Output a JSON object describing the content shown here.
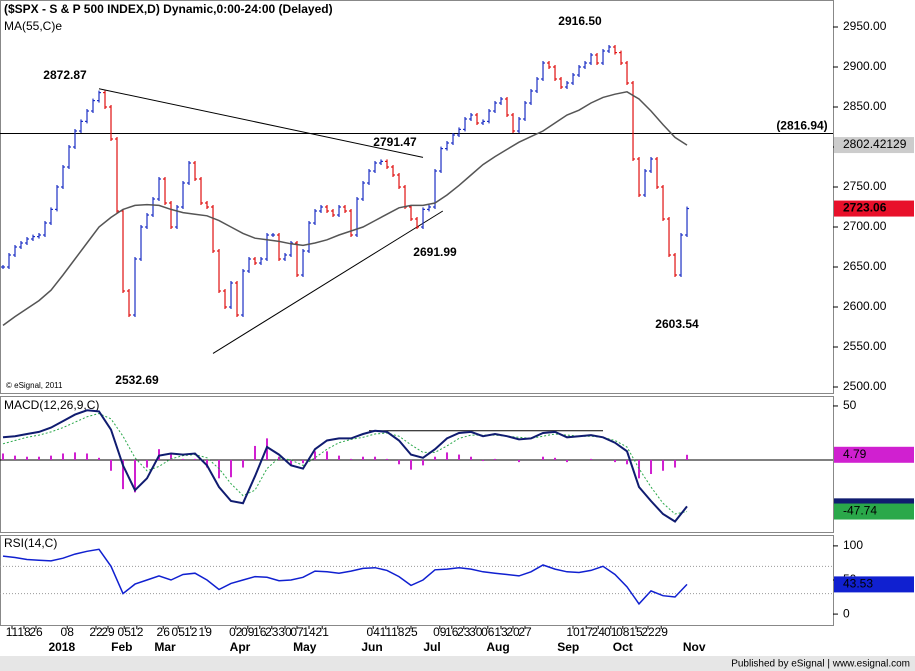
{
  "chart_data": {
    "type": "ohlc",
    "title": "($SPX - S & P 500 INDEX,D) Dynamic,0:00-24:00 (Delayed)",
    "copyright": "© eSignal, 2011",
    "publisher": "Published by eSignal | www.esignal.com",
    "xlim": [
      -0.5,
      138.33
    ],
    "xticks": [
      {
        "value": 1.5,
        "label": "11"
      },
      {
        "value": 3.5,
        "label": "18"
      },
      {
        "value": 5.5,
        "label": "26"
      },
      {
        "value": 10.7,
        "label": "08"
      },
      {
        "value": 15.5,
        "label": "22"
      },
      {
        "value": 17.5,
        "label": "29"
      },
      {
        "value": 20.2,
        "label": "05"
      },
      {
        "value": 22.3,
        "label": "12"
      },
      {
        "value": 26.7,
        "label": "26"
      },
      {
        "value": 29.2,
        "label": "05"
      },
      {
        "value": 31.3,
        "label": "12"
      },
      {
        "value": 33.7,
        "label": "19"
      },
      {
        "value": 38.8,
        "label": "02"
      },
      {
        "value": 40.8,
        "label": "09"
      },
      {
        "value": 42.8,
        "label": "16"
      },
      {
        "value": 44.8,
        "label": "23"
      },
      {
        "value": 47,
        "label": "30"
      },
      {
        "value": 49,
        "label": "07"
      },
      {
        "value": 51,
        "label": "14"
      },
      {
        "value": 53.2,
        "label": "21"
      },
      {
        "value": 61.7,
        "label": "04"
      },
      {
        "value": 63.8,
        "label": "11"
      },
      {
        "value": 65.8,
        "label": "18"
      },
      {
        "value": 68,
        "label": "25"
      },
      {
        "value": 72.8,
        "label": "09"
      },
      {
        "value": 74.8,
        "label": "16"
      },
      {
        "value": 76.8,
        "label": "23"
      },
      {
        "value": 78.8,
        "label": "30"
      },
      {
        "value": 80.8,
        "label": "06"
      },
      {
        "value": 83,
        "label": "13"
      },
      {
        "value": 85,
        "label": "20"
      },
      {
        "value": 87,
        "label": "27"
      },
      {
        "value": 95,
        "label": "10"
      },
      {
        "value": 97.2,
        "label": "17"
      },
      {
        "value": 99.2,
        "label": "24"
      },
      {
        "value": 101.3,
        "label": "01"
      },
      {
        "value": 103.3,
        "label": "08"
      },
      {
        "value": 105.5,
        "label": "15"
      },
      {
        "value": 107.5,
        "label": "22"
      },
      {
        "value": 109.7,
        "label": "29"
      }
    ],
    "months": [
      {
        "value": 9.8,
        "label": "2018"
      },
      {
        "value": 19.8,
        "label": "Feb"
      },
      {
        "value": 27,
        "label": "Mar"
      },
      {
        "value": 39.5,
        "label": "Apr"
      },
      {
        "value": 50.3,
        "label": "May"
      },
      {
        "value": 61.5,
        "label": "Jun"
      },
      {
        "value": 71.5,
        "label": "Jul"
      },
      {
        "value": 82.5,
        "label": "Aug"
      },
      {
        "value": 94.2,
        "label": "Sep"
      },
      {
        "value": 103.3,
        "label": "Oct"
      },
      {
        "value": 115.2,
        "label": "Nov"
      }
    ],
    "ylim": [
      2492.5,
      2983.75
    ],
    "yticks": [
      {
        "value": 2500,
        "label": "2500.00"
      },
      {
        "value": 2550,
        "label": "2550.00"
      },
      {
        "value": 2600,
        "label": "2600.00"
      },
      {
        "value": 2650,
        "label": "2650.00"
      },
      {
        "value": 2700,
        "label": "2700.00"
      },
      {
        "value": 2750,
        "label": "2750.00"
      },
      {
        "value": 2800,
        "label": "2800.00"
      },
      {
        "value": 2850,
        "label": "2850.00"
      },
      {
        "value": 2900,
        "label": "2900.00"
      },
      {
        "value": 2950,
        "label": "2950.00"
      }
    ],
    "price": {
      "up_color": "#1c2fc4",
      "down_color": "#e01010",
      "last_color": "#e8102a",
      "closes": [
        2650,
        2665,
        2675,
        2680,
        2685,
        2688,
        2690,
        2705,
        2722,
        2750,
        2775,
        2800,
        2820,
        2832,
        2845,
        2858,
        2868,
        2850,
        2810,
        2720,
        2620,
        2590,
        2660,
        2700,
        2715,
        2735,
        2760,
        2730,
        2700,
        2725,
        2755,
        2780,
        2760,
        2730,
        2725,
        2670,
        2620,
        2600,
        2630,
        2590,
        2645,
        2660,
        2655,
        2660,
        2690,
        2690,
        2660,
        2665,
        2680,
        2640,
        2670,
        2705,
        2720,
        2725,
        2720,
        2715,
        2725,
        2720,
        2690,
        2735,
        2755,
        2770,
        2780,
        2782,
        2775,
        2765,
        2750,
        2725,
        2710,
        2700,
        2722,
        2725,
        2770,
        2798,
        2805,
        2815,
        2822,
        2835,
        2840,
        2830,
        2832,
        2845,
        2855,
        2860,
        2840,
        2820,
        2835,
        2855,
        2870,
        2885,
        2905,
        2900,
        2885,
        2875,
        2880,
        2890,
        2900,
        2905,
        2915,
        2905,
        2920,
        2925,
        2918,
        2905,
        2880,
        2785,
        2740,
        2770,
        2785,
        2750,
        2710,
        2665,
        2640,
        2690,
        2723.06
      ]
    },
    "indicator_x": [
      0,
      2,
      4,
      6,
      8,
      10,
      12,
      14,
      16,
      18,
      20,
      22,
      24,
      26,
      28,
      30,
      32,
      34,
      36,
      38,
      40,
      42,
      44,
      46,
      48,
      50,
      52,
      54,
      56,
      58,
      60,
      62,
      64,
      66,
      68,
      70,
      72,
      74,
      76,
      78,
      80,
      82,
      84,
      86,
      88,
      90,
      92,
      94,
      96,
      98,
      100,
      102,
      104,
      106,
      108,
      110,
      112,
      114
    ],
    "ma": {
      "name": "MA(55,C)e",
      "color": "#555555",
      "values": [
        2577,
        2588,
        2598,
        2608,
        2621,
        2640,
        2660,
        2680,
        2700,
        2712,
        2722,
        2727,
        2728,
        2727,
        2722,
        2718,
        2716,
        2714,
        2708,
        2700,
        2692,
        2686,
        2684,
        2682,
        2679,
        2677,
        2680,
        2684,
        2690,
        2695,
        2700,
        2708,
        2716,
        2724,
        2727,
        2727,
        2730,
        2740,
        2752,
        2765,
        2778,
        2788,
        2797,
        2806,
        2813,
        2820,
        2830,
        2840,
        2846,
        2855,
        2862,
        2866,
        2869,
        2860,
        2845,
        2828,
        2812,
        2802.42129
      ]
    },
    "hline": {
      "value": 2816.94,
      "label": "(2816.94)"
    },
    "trendlines": [
      [
        [
          16,
          2872.87
        ],
        [
          70,
          2787
        ]
      ],
      [
        [
          35,
          2542
        ],
        [
          73.3,
          2720
        ]
      ]
    ],
    "annotations": [
      "2872.87",
      "2532.69",
      "2791.47",
      "2691.99",
      "2916.50",
      "2603.54"
    ],
    "macd": {
      "title": "MACD(12,26,9,C)",
      "ylim": [
        -66.7,
        58.3
      ],
      "yticks": [
        50
      ],
      "line": [
        [
          61,
          27
        ],
        [
          100,
          27
        ]
      ],
      "macd": {
        "color": "#101c70",
        "values": [
          21,
          22,
          24,
          26,
          30,
          36,
          42,
          46,
          45,
          28,
          -5,
          -28,
          -17,
          4,
          6,
          5,
          6,
          -5,
          -25,
          -38,
          -40,
          -15,
          12,
          5,
          -5,
          -8,
          10,
          18,
          20,
          20,
          24,
          27,
          26,
          18,
          5,
          2,
          10,
          20,
          25,
          26,
          22,
          24,
          22,
          19,
          20,
          25,
          26,
          21,
          22,
          23,
          21,
          16,
          8,
          -25,
          -38,
          -50,
          -57,
          -42.95
        ]
      },
      "signal": {
        "color": "#2aa84a",
        "values": [
          15,
          18,
          21,
          23,
          26,
          30,
          35,
          40,
          43,
          38,
          22,
          2,
          -10,
          -6,
          1,
          4,
          5,
          2,
          -8,
          -22,
          -33,
          -28,
          -8,
          2,
          0,
          -5,
          2,
          10,
          16,
          19,
          21,
          24,
          25,
          22,
          14,
          7,
          7,
          13,
          20,
          23,
          23,
          23,
          22,
          21,
          20,
          22,
          24,
          23,
          22,
          22,
          21,
          18,
          12,
          -8,
          -25,
          -40,
          -50,
          -47.74
        ]
      },
      "hist": {
        "color": "#d020d0",
        "values": [
          6,
          4,
          3,
          3,
          4,
          6,
          7,
          6,
          2,
          -10,
          -27,
          -30,
          -7,
          10,
          5,
          1,
          1,
          -7,
          -17,
          -16,
          -7,
          13,
          20,
          3,
          -5,
          -3,
          8,
          8,
          4,
          1,
          3,
          3,
          1,
          -4,
          -9,
          -5,
          3,
          7,
          5,
          3,
          -1,
          1,
          0,
          -2,
          0,
          3,
          2,
          -2,
          0,
          1,
          0,
          -2,
          -4,
          -17,
          -13,
          -10,
          -7,
          4.79
        ]
      }
    },
    "rsi": {
      "title": "RSI(14,C)",
      "ylim": [
        -16,
        114.5
      ],
      "yticks": [
        100,
        50,
        0
      ],
      "levels": [
        70,
        30
      ],
      "color": "#1020d0",
      "values": [
        85,
        83,
        80,
        79,
        78,
        82,
        88,
        92,
        95,
        70,
        30,
        44,
        50,
        56,
        50,
        58,
        60,
        50,
        36,
        45,
        50,
        55,
        54,
        49,
        50,
        54,
        63,
        62,
        60,
        63,
        67,
        68,
        64,
        55,
        42,
        50,
        65,
        66,
        68,
        66,
        62,
        60,
        58,
        56,
        62,
        72,
        66,
        62,
        61,
        64,
        70,
        58,
        40,
        15,
        34,
        27,
        25,
        43.53
      ]
    }
  }
}
